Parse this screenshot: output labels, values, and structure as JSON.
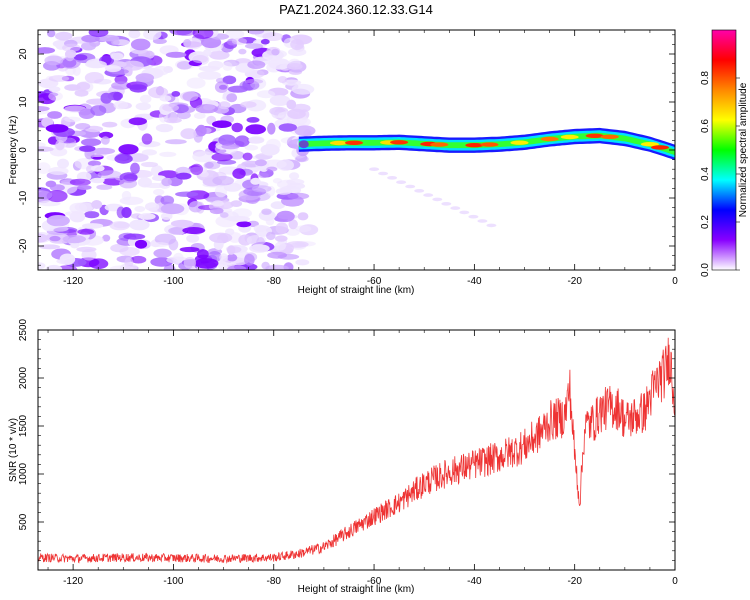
{
  "title": "PAZ1.2024.360.12.33.G14",
  "chart_data": [
    {
      "type": "heatmap",
      "xlabel": "Height of straight line (km)",
      "ylabel": "Frequency (Hz)",
      "xlim": [
        -127,
        0
      ],
      "ylim": [
        -25,
        25
      ],
      "x_ticks": [
        -120,
        -100,
        -80,
        -60,
        -40,
        -20,
        0
      ],
      "y_ticks": [
        -20,
        -10,
        0,
        10,
        20
      ],
      "colorbar": {
        "label": "Normalized spectral amplitude",
        "range": [
          0,
          1
        ],
        "ticks": [
          "0.0",
          "0.2",
          "0.4",
          "0.6",
          "0.8"
        ],
        "colors": [
          "#ffffff",
          "#8800ff",
          "#0000ff",
          "#00ffff",
          "#00ff00",
          "#ffff00",
          "#ff8800",
          "#ff0000",
          "#ff00aa"
        ]
      },
      "signal_track": {
        "x": [
          -75,
          -70,
          -65,
          -60,
          -55,
          -50,
          -45,
          -40,
          -35,
          -30,
          -25,
          -20,
          -15,
          -10,
          -5,
          -2,
          0
        ],
        "frequency": [
          1.2,
          1.4,
          1.5,
          1.5,
          1.6,
          1.3,
          1.0,
          1.0,
          1.2,
          1.6,
          2.3,
          2.8,
          3.0,
          2.4,
          1.2,
          0.2,
          -0.5
        ]
      }
    },
    {
      "type": "line",
      "xlabel": "Height of straight line (km)",
      "ylabel": "SNR (10 * v/v)",
      "xlim": [
        -127,
        0
      ],
      "ylim": [
        0,
        2500
      ],
      "x_ticks": [
        -120,
        -100,
        -80,
        -60,
        -40,
        -20,
        0
      ],
      "y_ticks": [
        500,
        1000,
        1500,
        2000,
        2500
      ],
      "series": [
        {
          "color": "#ee3333",
          "x": [
            -127,
            -120,
            -110,
            -100,
            -90,
            -80,
            -75,
            -70,
            -65,
            -60,
            -55,
            -50,
            -45,
            -40,
            -35,
            -30,
            -27,
            -25,
            -22,
            -21,
            -20,
            -19,
            -18,
            -16,
            -15,
            -13,
            -11,
            -10,
            -8,
            -6,
            -5,
            -4,
            -3,
            -2,
            -1,
            -0.3,
            0
          ],
          "values": [
            130,
            120,
            130,
            125,
            120,
            130,
            170,
            240,
            400,
            560,
            700,
            900,
            1020,
            1100,
            1180,
            1290,
            1420,
            1550,
            1600,
            1900,
            1200,
            700,
            1500,
            1550,
            1650,
            1700,
            1680,
            1550,
            1600,
            1650,
            1800,
            1900,
            2000,
            2050,
            2250,
            1850,
            1750
          ]
        }
      ]
    }
  ]
}
